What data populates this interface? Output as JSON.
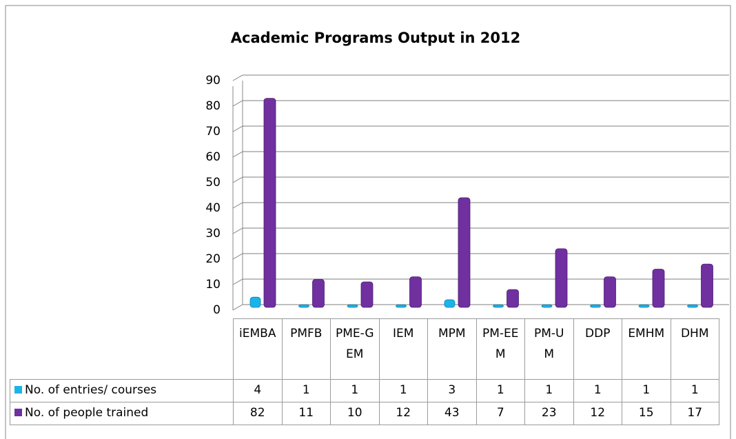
{
  "chart_data": {
    "type": "bar",
    "title": "Academic Programs Output in 2012",
    "categories": [
      "iEMBA",
      "PMFB",
      "PME-GEM",
      "IEM",
      "MPM",
      "PM-EEM",
      "PM-UM",
      "DDP",
      "EMHM",
      "DHM"
    ],
    "series": [
      {
        "name": "No. of entries/ courses",
        "color": "#1cb4e8",
        "values": [
          4,
          1,
          1,
          1,
          3,
          1,
          1,
          1,
          1,
          1
        ]
      },
      {
        "name": "No. of people trained",
        "color": "#7030a0",
        "values": [
          82,
          11,
          10,
          12,
          43,
          7,
          23,
          12,
          15,
          17
        ]
      }
    ],
    "ylim": [
      0,
      90
    ],
    "yticks": [
      0,
      10,
      20,
      30,
      40,
      50,
      60,
      70,
      80,
      90
    ],
    "grid": true
  }
}
